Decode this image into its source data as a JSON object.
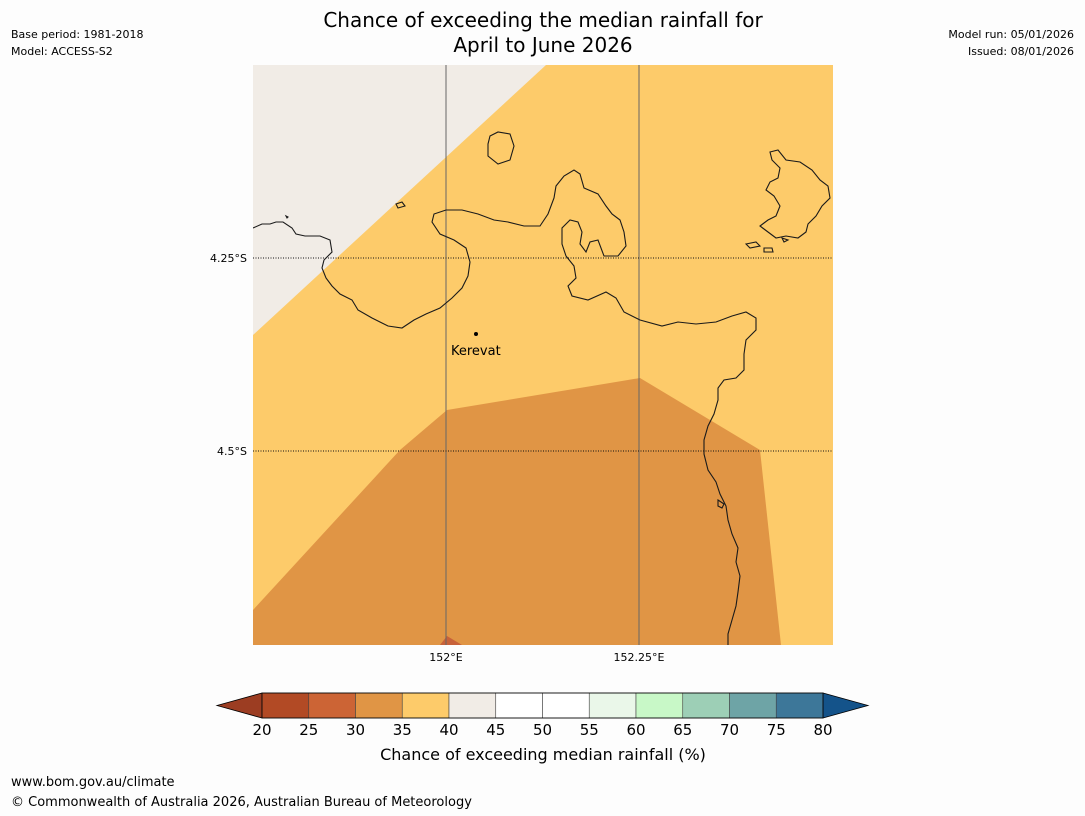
{
  "title": {
    "line1": "Chance of exceeding the median rainfall for",
    "line2": "April to June 2026"
  },
  "meta_left": {
    "base_period": "Base period: 1981-2018",
    "model": "Model: ACCESS-S2"
  },
  "meta_right": {
    "model_run": "Model run: 05/01/2026",
    "issued": "Issued: 08/01/2026"
  },
  "map": {
    "place_label": "Kerevat",
    "lat_labels": [
      "4.25°S",
      "4.5°S"
    ],
    "lon_labels": [
      "152°E",
      "152.25°E"
    ],
    "colors": {
      "band_35_40": "#fdcb6a",
      "band_30_35": "#e09545",
      "band_40_45": "#f1ece6",
      "band_20_25": "#c8623a",
      "coast": "#1a1a1a",
      "grid": "#666666"
    }
  },
  "colorbar": {
    "title": "Chance of exceeding median rainfall (%)",
    "ticks": [
      "20",
      "25",
      "30",
      "35",
      "40",
      "45",
      "50",
      "55",
      "60",
      "65",
      "70",
      "75",
      "80"
    ],
    "colors": [
      "#b24a25",
      "#cc6435",
      "#e09545",
      "#fdcb6a",
      "#f1ece6",
      "#ffffff",
      "#ffffff",
      "#eaf7e9",
      "#c8f8c7",
      "#9dcfb6",
      "#6ea4a6",
      "#3d7799"
    ],
    "under_color": "#9c3d22",
    "over_color": "#14538a"
  },
  "footer": {
    "url": "www.bom.gov.au/climate",
    "copyright": "© Commonwealth of Australia 2026, Australian Bureau of Meteorology"
  }
}
